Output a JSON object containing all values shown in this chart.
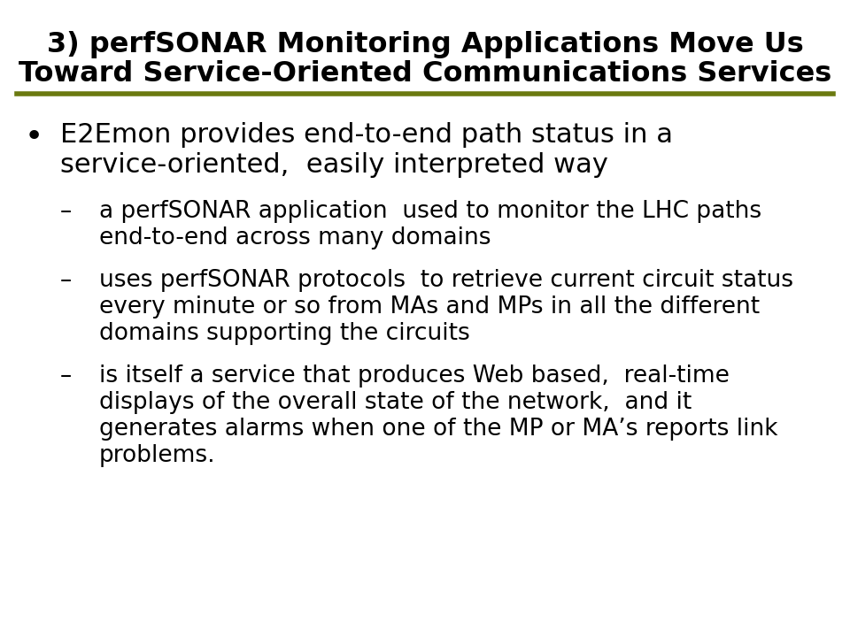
{
  "title_line1": "3) perfSONAR Monitoring Applications Move Us",
  "title_line2": "Toward Service-Oriented Communications Services",
  "title_fontsize": 23,
  "title_color": "#000000",
  "line_color": "#6b7a10",
  "bg_color": "#ffffff",
  "bullet_fontsize": 22,
  "sub_fontsize": 19,
  "text_color": "#000000",
  "bullet_marker": "•",
  "sub_marker": "–",
  "bullet_lines": [
    "E2Emon provides end-to-end path status in a",
    "service-oriented,  easily interpreted way"
  ],
  "sub_items_lines": [
    [
      "a perfSONAR application  used to monitor the LHC paths",
      "end-to-end across many domains"
    ],
    [
      "uses perfSONAR protocols  to retrieve current circuit status",
      "every minute or so from MAs and MPs in all the different",
      "domains supporting the circuits"
    ],
    [
      "is itself a service that produces Web based,  real-time",
      "displays of the overall state of the network,  and it",
      "generates alarms when one of the MP or MA’s reports link",
      "problems."
    ]
  ]
}
